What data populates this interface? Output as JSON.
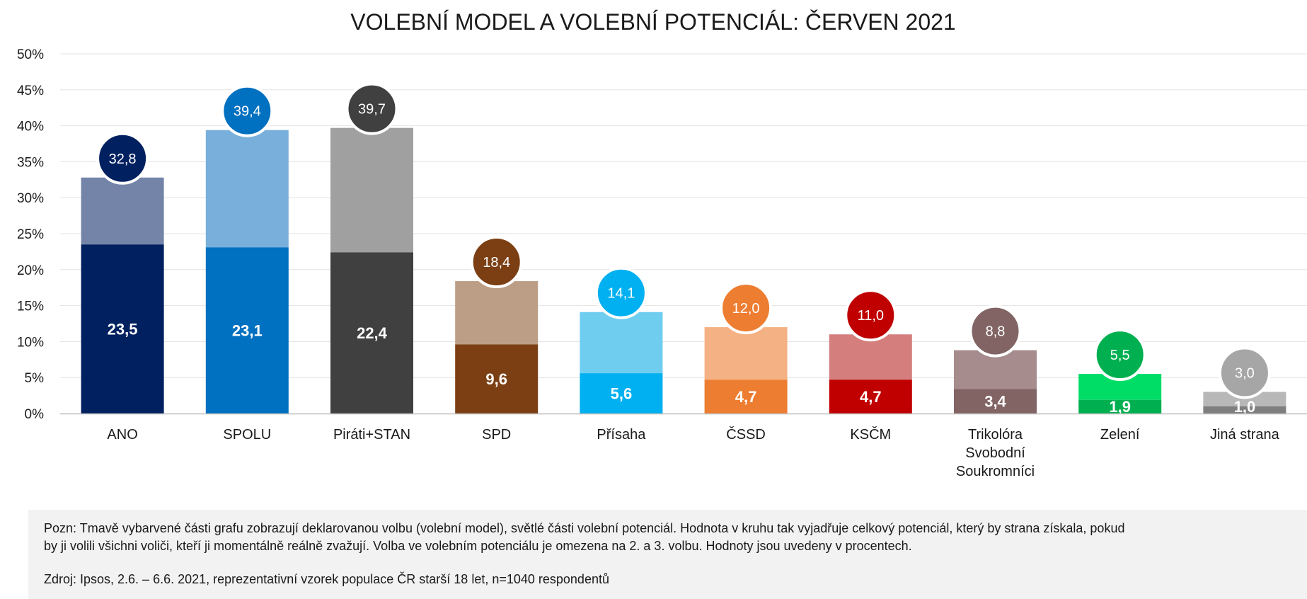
{
  "chart_data": {
    "type": "bar",
    "stacked": true,
    "title": "VOLEBNÍ MODEL A VOLEBNÍ POTENCIÁL: ČERVEN 2021",
    "ylim": [
      0,
      50
    ],
    "yticks": [
      "0%",
      "5%",
      "10%",
      "15%",
      "20%",
      "25%",
      "30%",
      "35%",
      "40%",
      "45%",
      "50%"
    ],
    "grid": true,
    "categories": [
      [
        "ANO"
      ],
      [
        "SPOLU"
      ],
      [
        "Piráti+STAN"
      ],
      [
        "SPD"
      ],
      [
        "Přísaha"
      ],
      [
        "ČSSD"
      ],
      [
        "KSČM"
      ],
      [
        "Trikolóra",
        "Svobodní",
        "Soukromníci"
      ],
      [
        "Zelení"
      ],
      [
        "Jiná strana"
      ]
    ],
    "series": [
      {
        "name": "volební model",
        "values": [
          23.5,
          23.1,
          22.4,
          9.6,
          5.6,
          4.7,
          4.7,
          3.4,
          1.9,
          1.0
        ],
        "labels": [
          "23,5",
          "23,1",
          "22,4",
          "9,6",
          "5,6",
          "4,7",
          "4,7",
          "3,4",
          "1,9",
          "1,0"
        ]
      },
      {
        "name": "volební potenciál",
        "totals": [
          32.8,
          39.4,
          39.7,
          18.4,
          14.1,
          12.0,
          11.0,
          8.8,
          5.5,
          3.0
        ],
        "labels": [
          "32,8",
          "39,4",
          "39,7",
          "18,4",
          "14,1",
          "12,0",
          "11,0",
          "8,8",
          "5,5",
          "3,0"
        ]
      }
    ],
    "colors": {
      "dark": [
        "#002060",
        "#0070c0",
        "#404040",
        "#7b3f13",
        "#00b0f0",
        "#ed7d31",
        "#c00000",
        "#826464",
        "#00b050",
        "#7f7f7f"
      ],
      "light": [
        "#7384a8",
        "#79b0db",
        "#a0a0a0",
        "#bb9e85",
        "#6fcdef",
        "#f4b183",
        "#d47e7e",
        "#a68c8c",
        "#00dd66",
        "#b8b8b8"
      ],
      "circle": [
        "#002060",
        "#0070c0",
        "#404040",
        "#7b3f13",
        "#00b0f0",
        "#ed7d31",
        "#c00000",
        "#826464",
        "#00b050",
        "#a6a6a6"
      ]
    }
  },
  "notes": {
    "line1": "Pozn: Tmavě vybarvené části grafu zobrazují  deklarovanou volbu (volební model),  světlé části volební potenciál. Hodnota v kruhu tak vyjadřuje celkový potenciál, který by strana získala, pokud",
    "line2": "by ji volili všichni voliči, kteří ji momentálně  reálně zvažují.  Volba ve volebním potenciálu je omezena na 2. a 3. volbu. Hodnoty jsou uvedeny v procentech.",
    "source": "Zdroj: Ipsos, 2.6. – 6.6. 2021, reprezentativní vzorek populace ČR starší 18 let, n=1040 respondentů"
  }
}
